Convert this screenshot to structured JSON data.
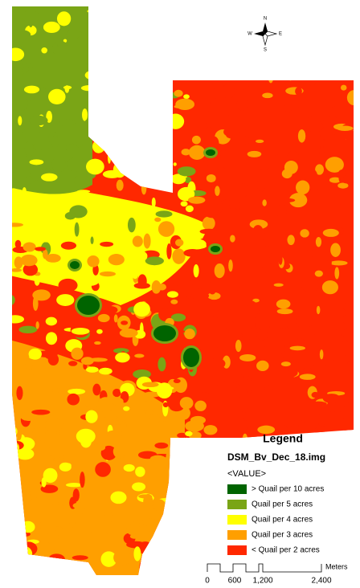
{
  "legend": {
    "title": "Legend",
    "layer": "DSM_Bv_Dec_18.img",
    "field": "<VALUE>",
    "items": [
      {
        "label": "> Quail per 10 acres",
        "color": "#006400"
      },
      {
        "label": "Quail per 5 acres",
        "color": "#7aa516"
      },
      {
        "label": "Quail per 4 acres",
        "color": "#ffff00"
      },
      {
        "label": "Quail per 3 acres",
        "color": "#ff9f00"
      },
      {
        "label": "< Quail per 2 acres",
        "color": "#ff2800"
      }
    ]
  },
  "scale_bar": {
    "unit": "Meters",
    "labels": [
      "0",
      "600",
      "1,200",
      "2,400"
    ]
  },
  "compass": {
    "n": "N",
    "s": "S",
    "e": "E",
    "w": "W"
  }
}
